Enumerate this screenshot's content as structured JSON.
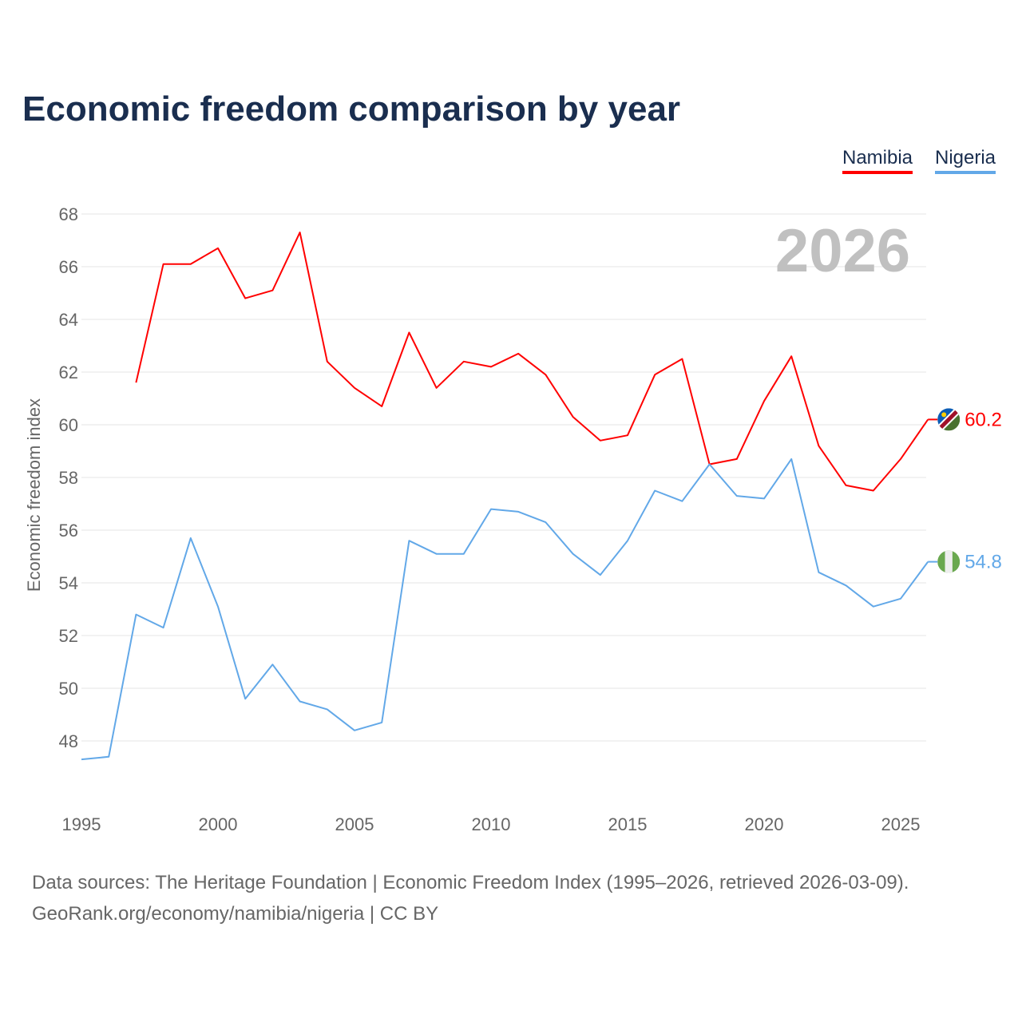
{
  "title": "Economic freedom comparison by year",
  "year_label": "2026",
  "footer": {
    "line1": "Data sources: The Heritage Foundation | Economic Freedom Index (1995–2026, retrieved 2026-03-09).",
    "line2": "GeoRank.org/economy/namibia/nigeria | CC BY"
  },
  "chart_data": {
    "type": "line",
    "title": "Economic freedom comparison by year",
    "xlabel": "",
    "ylabel": "Economic freedom index",
    "xlim": [
      1995,
      2026
    ],
    "ylim": [
      46,
      68
    ],
    "xticks": [
      1995,
      2000,
      2005,
      2010,
      2015,
      2020,
      2025
    ],
    "yticks": [
      48,
      50,
      52,
      54,
      56,
      58,
      60,
      62,
      64,
      66,
      68
    ],
    "grid": true,
    "legend": "top-right",
    "series": [
      {
        "name": "Namibia",
        "color": "#ff0000",
        "end_label": "60.2",
        "flag": "namibia-flag",
        "x": [
          1997,
          1998,
          1999,
          2000,
          2001,
          2002,
          2003,
          2004,
          2005,
          2006,
          2007,
          2008,
          2009,
          2010,
          2011,
          2012,
          2013,
          2014,
          2015,
          2016,
          2017,
          2018,
          2019,
          2020,
          2021,
          2022,
          2023,
          2024,
          2025,
          2026
        ],
        "values": [
          61.6,
          66.1,
          66.1,
          66.7,
          64.8,
          65.1,
          67.3,
          62.4,
          61.4,
          60.7,
          63.5,
          61.4,
          62.4,
          62.2,
          62.7,
          61.9,
          60.3,
          59.4,
          59.6,
          61.9,
          62.5,
          58.5,
          58.7,
          60.9,
          62.6,
          59.2,
          57.7,
          57.5,
          58.7,
          60.2
        ]
      },
      {
        "name": "Nigeria",
        "color": "#62a8e8",
        "end_label": "54.8",
        "flag": "nigeria-flag",
        "x": [
          1995,
          1996,
          1997,
          1998,
          1999,
          2000,
          2001,
          2002,
          2003,
          2004,
          2005,
          2006,
          2007,
          2008,
          2009,
          2010,
          2011,
          2012,
          2013,
          2014,
          2015,
          2016,
          2017,
          2018,
          2019,
          2020,
          2021,
          2022,
          2023,
          2024,
          2025,
          2026
        ],
        "values": [
          47.3,
          47.4,
          52.8,
          52.3,
          55.7,
          53.1,
          49.6,
          50.9,
          49.5,
          49.2,
          48.4,
          48.7,
          55.6,
          55.1,
          55.1,
          56.8,
          56.7,
          56.3,
          55.1,
          54.3,
          55.6,
          57.5,
          57.1,
          58.5,
          57.3,
          57.2,
          58.7,
          54.4,
          53.9,
          53.1,
          53.4,
          54.8
        ]
      }
    ]
  }
}
